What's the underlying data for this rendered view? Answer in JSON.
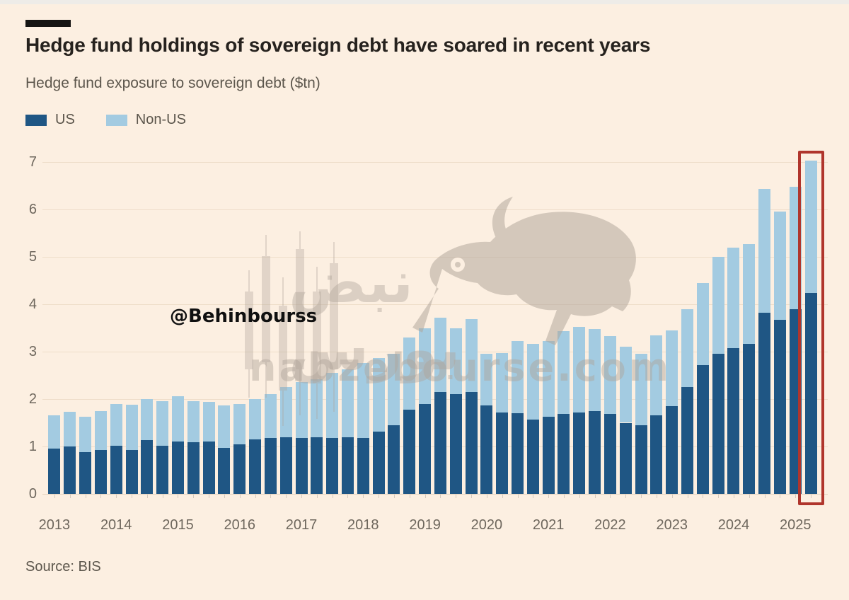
{
  "header": {
    "title": "Hedge fund holdings of sovereign debt have soared in recent years",
    "subtitle": "Hedge fund exposure to sovereign debt ($tn)"
  },
  "legend": {
    "items": [
      {
        "label": "US"
      },
      {
        "label": "Non-US"
      }
    ]
  },
  "source": "Source: BIS",
  "watermarks": {
    "handle": "@Behinbourss",
    "site": "nabzebourse.com",
    "brand": "نبض بورس"
  },
  "colors": {
    "background": "#fcefe1",
    "us": "#1f5684",
    "non_us": "#a3cbe1",
    "grid": "#eeddc9",
    "baseline": "#e4d1bd",
    "axis_text": "#6e675d",
    "title_text": "#26221e",
    "muted_text": "#5c564c",
    "highlight": "#b0352c",
    "watermark": "#b0a59a"
  },
  "chart_data": {
    "type": "bar",
    "stacked": true,
    "title": "Hedge fund exposure to sovereign debt ($tn)",
    "unit": "$tn",
    "ylim": [
      0,
      7
    ],
    "yticks": [
      0,
      1,
      2,
      3,
      4,
      5,
      6,
      7
    ],
    "grid": true,
    "legend_position": "top-left",
    "x_year_labels": [
      "2013",
      "2014",
      "2015",
      "2016",
      "2017",
      "2018",
      "2019",
      "2020",
      "2021",
      "2022",
      "2023",
      "2024",
      "2025"
    ],
    "quarters": [
      "2013 Q1",
      "2013 Q2",
      "2013 Q3",
      "2013 Q4",
      "2014 Q1",
      "2014 Q2",
      "2014 Q3",
      "2014 Q4",
      "2015 Q1",
      "2015 Q2",
      "2015 Q3",
      "2015 Q4",
      "2016 Q1",
      "2016 Q2",
      "2016 Q3",
      "2016 Q4",
      "2017 Q1",
      "2017 Q2",
      "2017 Q3",
      "2017 Q4",
      "2018 Q1",
      "2018 Q2",
      "2018 Q3",
      "2018 Q4",
      "2019 Q1",
      "2019 Q2",
      "2019 Q3",
      "2019 Q4",
      "2020 Q1",
      "2020 Q2",
      "2020 Q3",
      "2020 Q4",
      "2021 Q1",
      "2021 Q2",
      "2021 Q3",
      "2021 Q4",
      "2022 Q1",
      "2022 Q2",
      "2022 Q3",
      "2022 Q4",
      "2023 Q1",
      "2023 Q2",
      "2023 Q3",
      "2023 Q4",
      "2024 Q1",
      "2024 Q2",
      "2024 Q3",
      "2024 Q4",
      "2025 Q1",
      "2025 Q2"
    ],
    "series": [
      {
        "name": "US",
        "color_key": "us",
        "values": [
          0.95,
          1.0,
          0.88,
          0.93,
          1.02,
          0.92,
          1.13,
          1.02,
          1.1,
          1.09,
          1.11,
          0.97,
          1.04,
          1.15,
          1.18,
          1.19,
          1.18,
          1.2,
          1.18,
          1.19,
          1.18,
          1.32,
          1.45,
          1.78,
          1.9,
          2.15,
          2.1,
          2.15,
          1.87,
          1.71,
          1.7,
          1.56,
          1.63,
          1.68,
          1.72,
          1.74,
          1.68,
          1.5,
          1.45,
          1.66,
          1.85,
          2.25,
          2.71,
          2.96,
          3.08,
          3.16,
          3.82,
          3.67,
          3.9,
          4.24
        ]
      },
      {
        "name": "Non-US",
        "color_key": "non_us",
        "values": [
          0.7,
          0.73,
          0.75,
          0.81,
          0.87,
          0.96,
          0.87,
          0.93,
          0.96,
          0.87,
          0.83,
          0.89,
          0.86,
          0.85,
          0.92,
          1.07,
          1.18,
          1.22,
          1.37,
          1.43,
          1.58,
          1.54,
          1.51,
          1.52,
          1.6,
          1.57,
          1.4,
          1.53,
          1.09,
          1.26,
          1.52,
          1.61,
          1.6,
          1.75,
          1.8,
          1.74,
          1.65,
          1.6,
          1.51,
          1.68,
          1.6,
          1.65,
          1.74,
          2.04,
          2.11,
          2.11,
          2.61,
          2.28,
          2.58,
          2.79
        ]
      }
    ],
    "highlight": {
      "quarter": "2025 Q2",
      "index": 49
    }
  }
}
